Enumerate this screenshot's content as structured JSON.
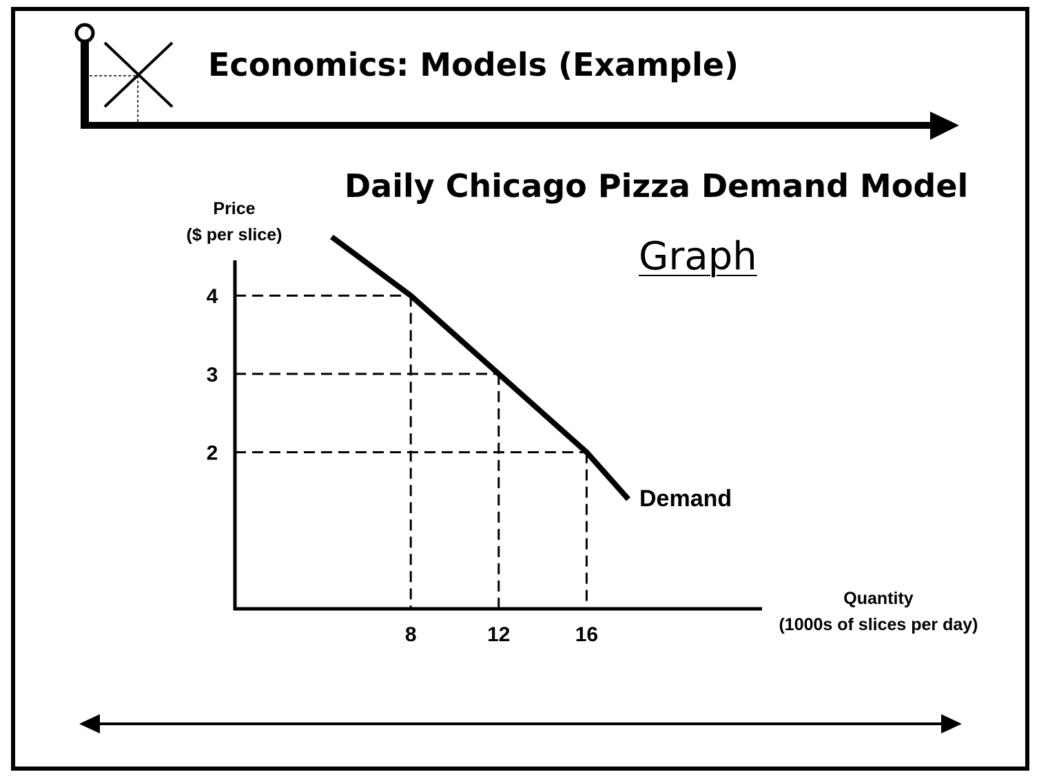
{
  "header": {
    "title": "Economics: Models (Example)",
    "logo_icon": "supply-demand-cross-icon"
  },
  "chart_data": {
    "type": "line",
    "title": "Daily Chicago Pizza Demand Model",
    "subtitle": "Graph",
    "ylabel_line1": "Price",
    "ylabel_line2": "($ per slice)",
    "xlabel_line1": "Quantity",
    "xlabel_line2": "(1000s of slices per day)",
    "x_ticks": [
      8,
      12,
      16
    ],
    "y_ticks": [
      2,
      3,
      4
    ],
    "xlim": [
      0,
      24
    ],
    "ylim": [
      0,
      4.5
    ],
    "series": [
      {
        "name": "Demand",
        "x": [
          4.4,
          8,
          12,
          16,
          17.9
        ],
        "y": [
          4.75,
          4,
          3,
          2,
          1.4
        ]
      }
    ],
    "reference_points": [
      {
        "x": 8,
        "y": 4
      },
      {
        "x": 12,
        "y": 3
      },
      {
        "x": 16,
        "y": 2
      }
    ],
    "grid": false,
    "reference_lines": "dashed"
  },
  "colors": {
    "ink": "#000000",
    "background": "#ffffff"
  }
}
